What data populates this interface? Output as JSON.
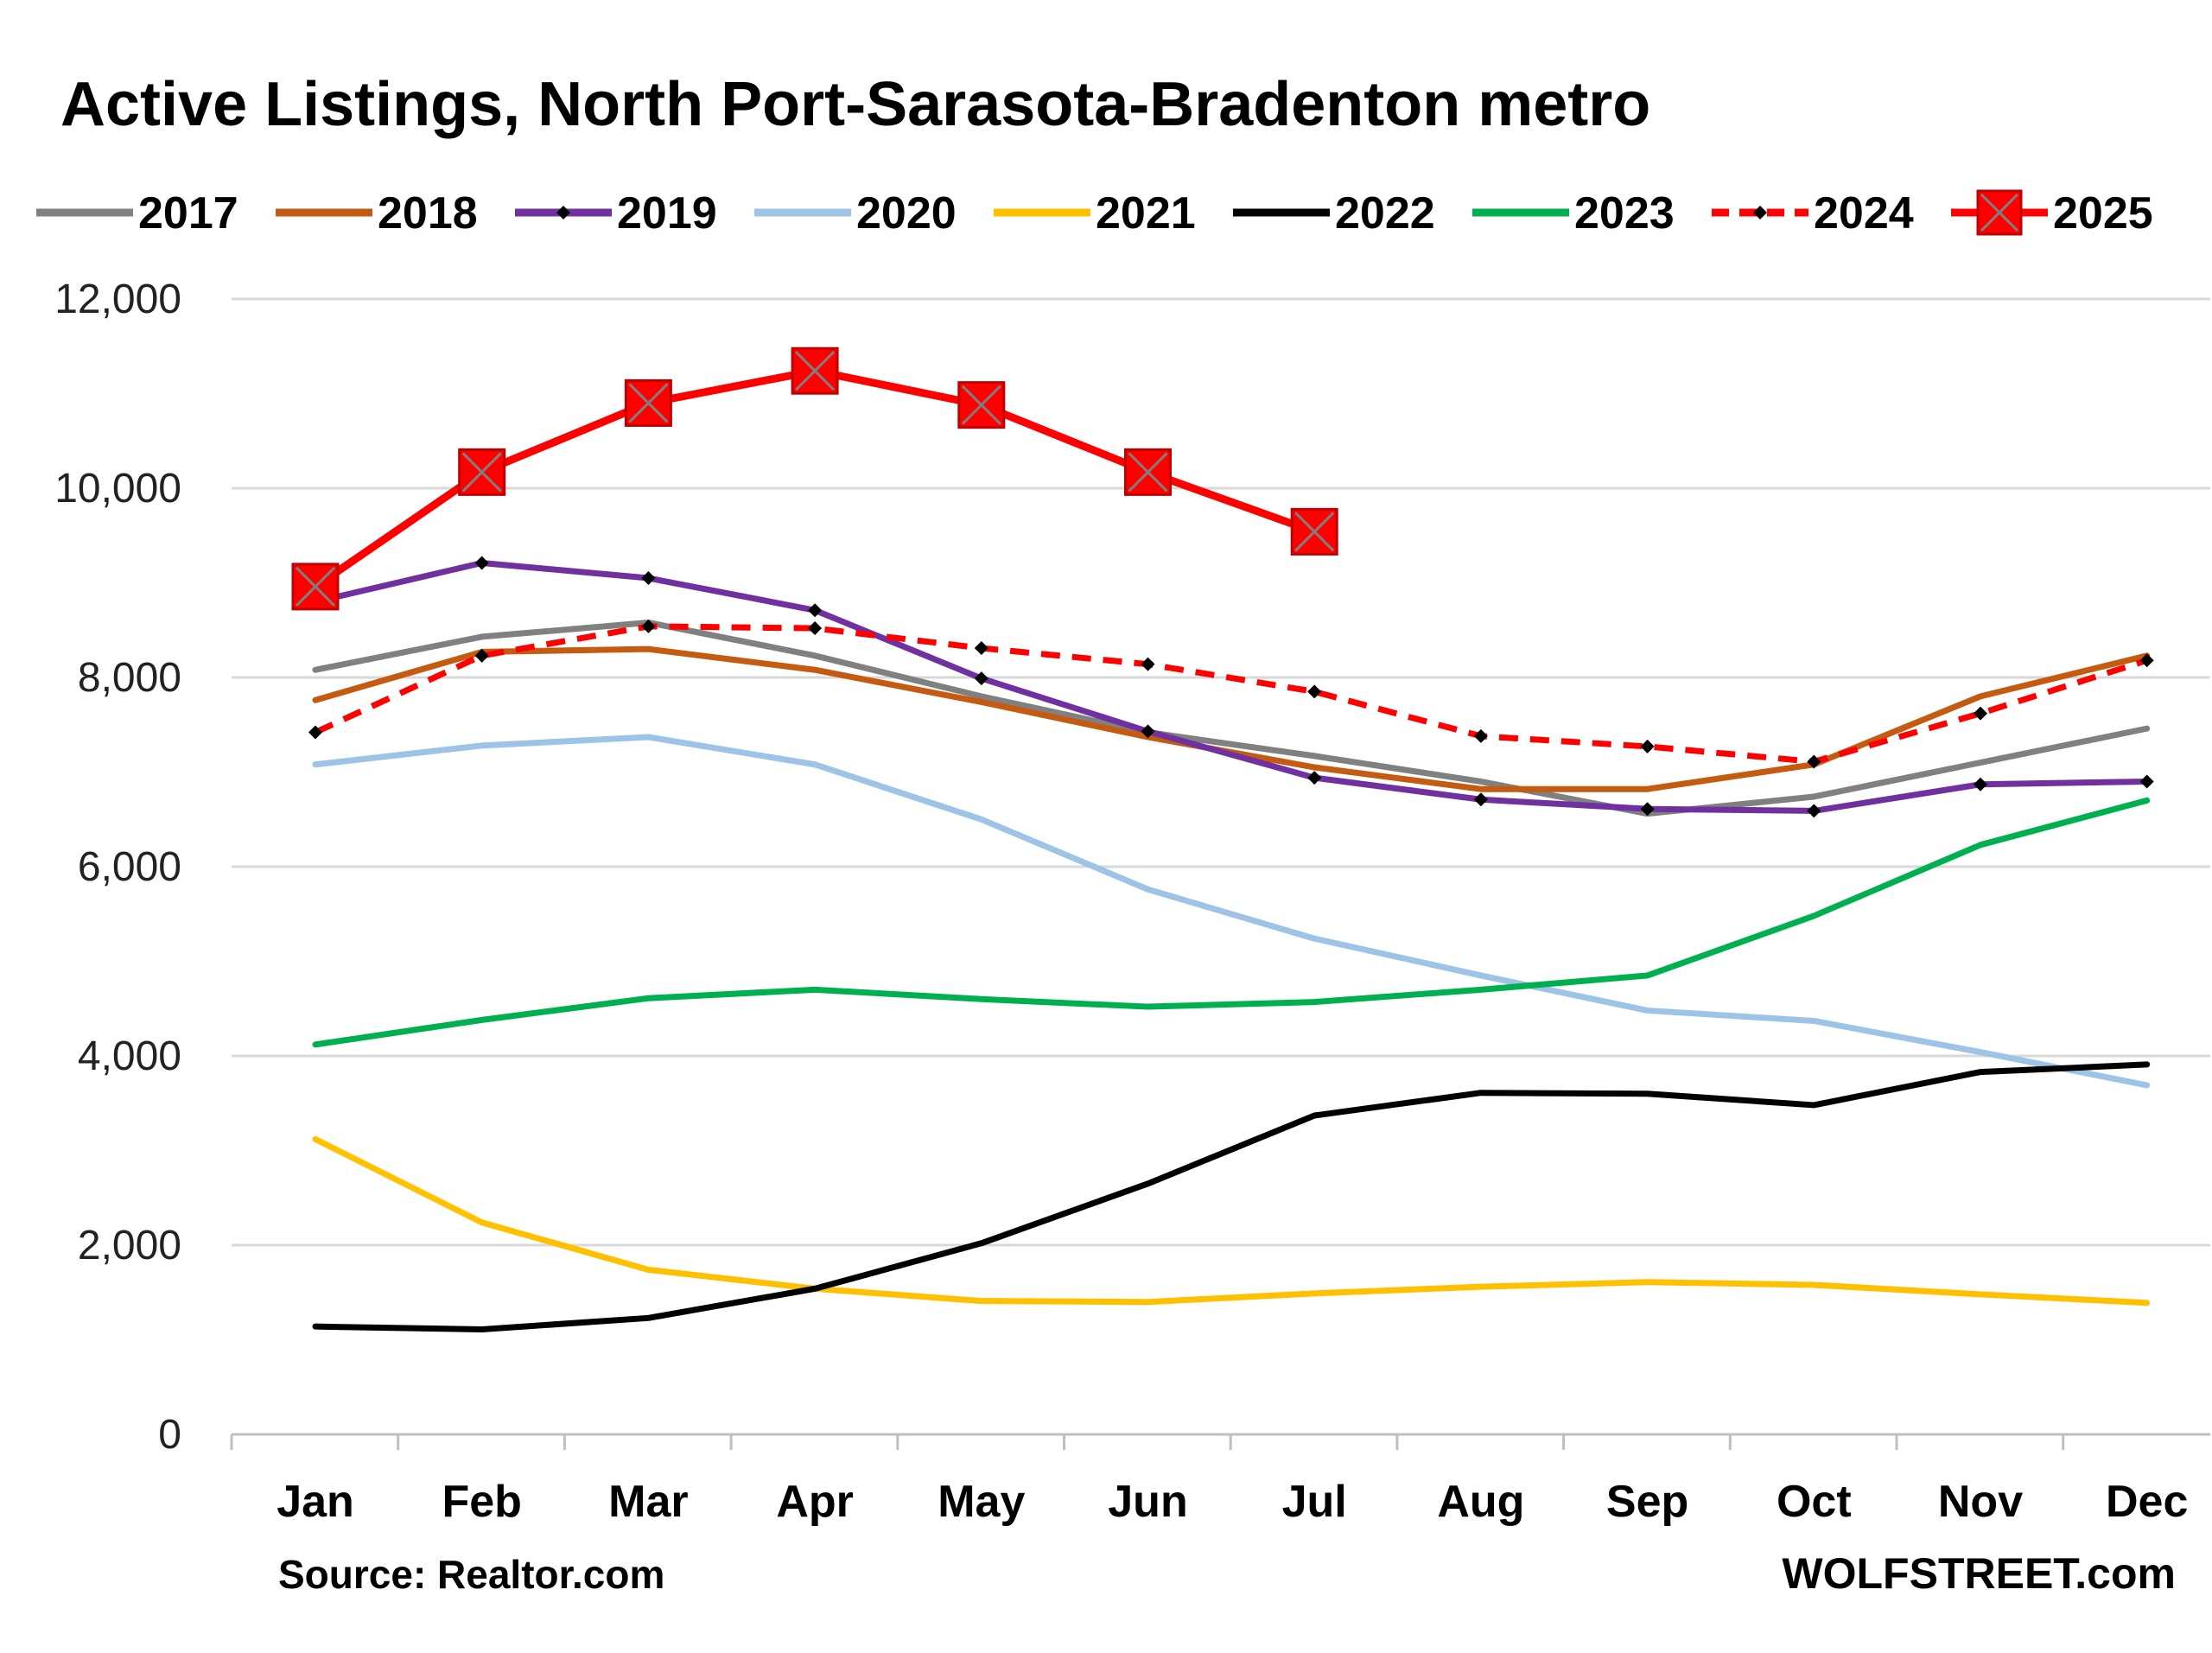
{
  "chart_data": {
    "type": "line",
    "title": "Active Listings, North Port-Sarasota-Bradenton metro",
    "xlabel": "",
    "ylabel": "",
    "categories": [
      "Jan",
      "Feb",
      "Mar",
      "Apr",
      "May",
      "Jun",
      "Jul",
      "Aug",
      "Sep",
      "Oct",
      "Nov",
      "Dec"
    ],
    "ylim": [
      0,
      12000
    ],
    "y_ticks": [
      0,
      2000,
      4000,
      6000,
      8000,
      10000,
      12000
    ],
    "y_tick_labels": [
      "0",
      "2,000",
      "4,000",
      "6,000",
      "8,000",
      "10,000",
      "12,000"
    ],
    "grid": true,
    "legend_position": "top",
    "source": "Source: Realtor.com",
    "watermark": "WOLFSTREET.com",
    "series": [
      {
        "name": "2017",
        "color": "#808080",
        "dashed": false,
        "marker": "none",
        "values": [
          8080,
          8430,
          8580,
          8230,
          7800,
          7420,
          7170,
          6900,
          6560,
          6740,
          7100,
          7460
        ]
      },
      {
        "name": "2018",
        "color": "#c55a11",
        "dashed": false,
        "marker": "none",
        "values": [
          7760,
          8270,
          8300,
          8080,
          7740,
          7370,
          7050,
          6820,
          6820,
          7080,
          7800,
          8230
        ]
      },
      {
        "name": "2019",
        "color": "#7030a0",
        "dashed": false,
        "marker": "diamond",
        "values": [
          8800,
          9210,
          9050,
          8710,
          7990,
          7430,
          6940,
          6710,
          6610,
          6590,
          6870,
          6900
        ]
      },
      {
        "name": "2020",
        "color": "#9dc3e6",
        "dashed": false,
        "marker": "none",
        "values": [
          7080,
          7280,
          7370,
          7080,
          6500,
          5760,
          5240,
          4850,
          4480,
          4370,
          4040,
          3690
        ]
      },
      {
        "name": "2021",
        "color": "#ffc000",
        "dashed": false,
        "marker": "none",
        "values": [
          3120,
          2240,
          1740,
          1540,
          1410,
          1400,
          1490,
          1560,
          1610,
          1580,
          1480,
          1390
        ]
      },
      {
        "name": "2022",
        "color": "#000000",
        "dashed": false,
        "marker": "none",
        "values": [
          1140,
          1110,
          1230,
          1540,
          2020,
          2650,
          3370,
          3610,
          3600,
          3480,
          3830,
          3910
        ]
      },
      {
        "name": "2023",
        "color": "#00b050",
        "dashed": false,
        "marker": "none",
        "values": [
          4120,
          4380,
          4610,
          4700,
          4600,
          4520,
          4570,
          4700,
          4850,
          5480,
          6230,
          6700
        ]
      },
      {
        "name": "2024",
        "color": "#ff0000",
        "dashed": true,
        "marker": "diamond",
        "values": [
          7420,
          8230,
          8540,
          8520,
          8310,
          8140,
          7850,
          7380,
          7270,
          7110,
          7620,
          8180
        ]
      },
      {
        "name": "2025",
        "color": "#ff0000",
        "dashed": false,
        "marker": "square-x",
        "values": [
          8960,
          10170,
          10900,
          11240,
          10880,
          10170,
          9540,
          null,
          null,
          null,
          null,
          null
        ]
      }
    ]
  }
}
